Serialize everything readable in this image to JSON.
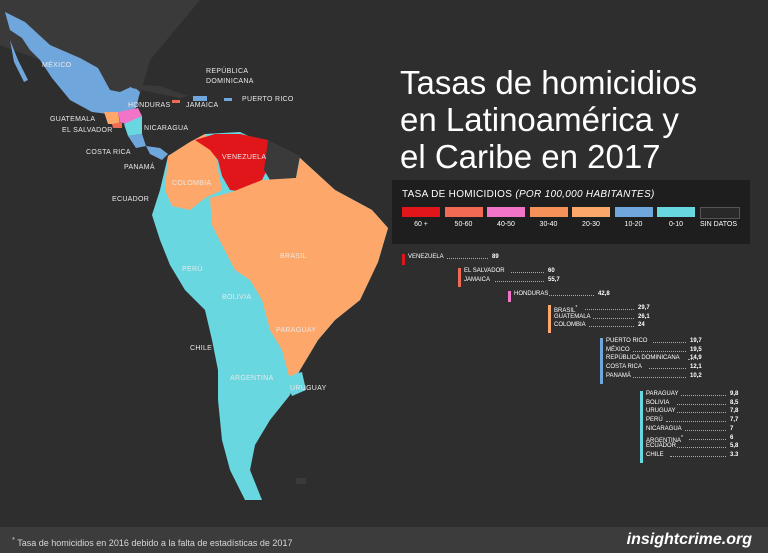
{
  "title_lines": [
    "Tasas de homicidios",
    "en Latinoamérica y",
    "el Caribe en 2017"
  ],
  "legend": {
    "title_main": "TASA DE HOMICIDIOS ",
    "title_paren": "(POR 100,000 HABITANTES)",
    "bins": [
      {
        "label": "60 +",
        "color": "#e0161b"
      },
      {
        "label": "50-60",
        "color": "#f06a54"
      },
      {
        "label": "40-50",
        "color": "#f274c8"
      },
      {
        "label": "30-40",
        "color": "#f7915a"
      },
      {
        "label": "20-30",
        "color": "#fda86a"
      },
      {
        "label": "10-20",
        "color": "#6fa7dd"
      },
      {
        "label": "0-10",
        "color": "#69d7e0"
      },
      {
        "label": "SIN DATOS",
        "color": "#2a292a"
      }
    ]
  },
  "map_labels": {
    "mexico": "MÉXICO",
    "rep_dom_1": "REPÚBLICA",
    "rep_dom_2": "DOMINICANA",
    "honduras": "HONDURAS",
    "jamaica": "JAMAICA",
    "puerto_rico": "PUERTO RICO",
    "guatemala": "GUATEMALA",
    "el_salvador": "EL SALVADOR",
    "nicaragua": "NICARAGUA",
    "costa_rica": "COSTA RICA",
    "venezuela": "VENEZUELA",
    "panama": "PANAMÁ",
    "colombia": "COLOMBIA",
    "ecuador": "ECUADOR",
    "brasil": "BRASIL",
    "peru": "PERÚ",
    "bolivia": "BOLIVIA",
    "paraguay": "PARAGUAY",
    "chile": "CHILE",
    "argentina": "ARGENTINA",
    "uruguay": "URUGUAY"
  },
  "ranking_groups": [
    {
      "color": "#e0161b",
      "rows": [
        {
          "country": "VENEZUELA",
          "value": "89"
        }
      ]
    },
    {
      "color": "#f06a54",
      "rows": [
        {
          "country": "EL SALVADOR",
          "value": "60"
        },
        {
          "country": "JAMAICA",
          "value": "55,7"
        }
      ]
    },
    {
      "color": "#f274c8",
      "rows": [
        {
          "country": "HONDURAS",
          "value": "42,8"
        }
      ]
    },
    {
      "color": "#fda86a",
      "rows": [
        {
          "country": "BRASIL",
          "mark": "*",
          "value": "29,7"
        },
        {
          "country": "GUATEMALA",
          "value": "26,1"
        },
        {
          "country": "COLOMBIA",
          "value": "24"
        }
      ]
    },
    {
      "color": "#6fa7dd",
      "rows": [
        {
          "country": "PUERTO RICO",
          "value": "19,7"
        },
        {
          "country": "MÉXICO",
          "value": "19,5"
        },
        {
          "country": "REPÚBLICA DOMINICANA",
          "value": "14,9"
        },
        {
          "country": "COSTA RICA",
          "value": "12,1"
        },
        {
          "country": "PANAMÁ",
          "value": "10,2"
        }
      ]
    },
    {
      "color": "#69d7e0",
      "rows": [
        {
          "country": "PARAGUAY",
          "value": "9,8"
        },
        {
          "country": "BOLIVIA",
          "value": "8,5"
        },
        {
          "country": "URUGUAY",
          "value": "7,8"
        },
        {
          "country": "PERÚ",
          "value": "7,7"
        },
        {
          "country": "NICARAGUA",
          "value": "7"
        },
        {
          "country": "ARGENTINA",
          "mark": "*",
          "value": "6"
        },
        {
          "country": "ECUADOR",
          "value": "5,8"
        },
        {
          "country": "CHILE",
          "value": "3.3"
        }
      ]
    }
  ],
  "footer": {
    "mark": "*",
    "note": " Tasa de homicidios en 2016 debido a la falta de estadísticas de 2017",
    "brand": "insightcrime.org"
  }
}
